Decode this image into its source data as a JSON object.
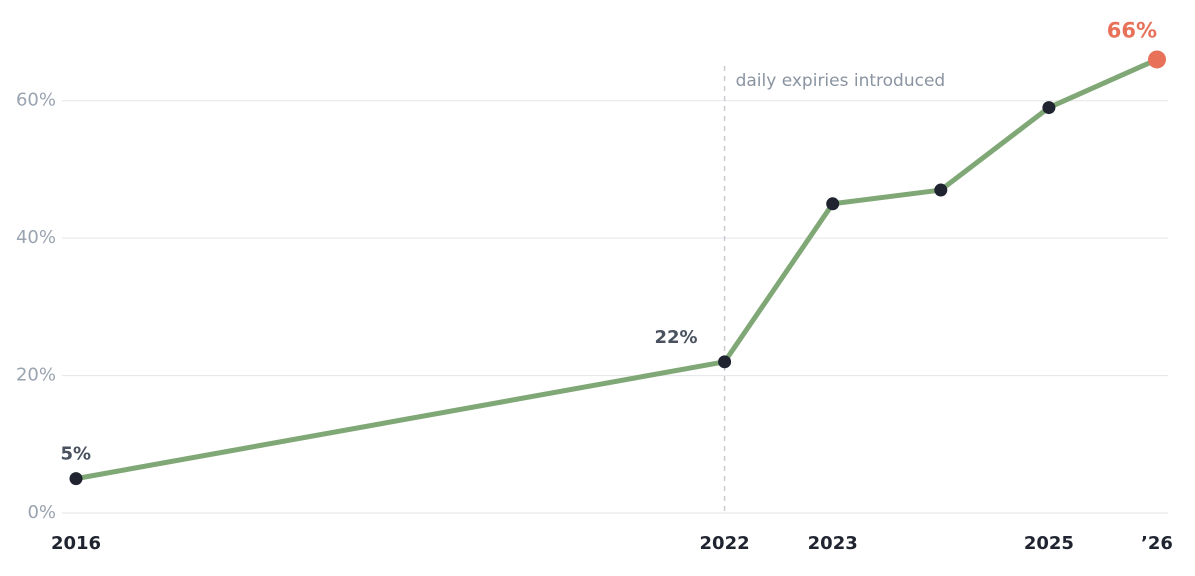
{
  "chart_data": {
    "type": "line",
    "x": [
      2016,
      2022,
      2023,
      2024,
      2025,
      2026
    ],
    "series": [
      {
        "color": "#80a876",
        "values": [
          5,
          22,
          45,
          47,
          59,
          66
        ],
        "value_labels": [
          "5%",
          "22%",
          null,
          null,
          null,
          "66%"
        ]
      }
    ],
    "marker_color": "#1f2430",
    "highlight_color": "#e8715a",
    "xlim": [
      2016,
      2026
    ],
    "xticks": [
      2016,
      2022,
      2023,
      2025,
      {
        "value": 2026,
        "label": "’26"
      }
    ],
    "ylim": [
      0,
      70
    ],
    "yticks": [
      {
        "value": 0,
        "label": "0%"
      },
      {
        "value": 20,
        "label": "20%"
      },
      {
        "value": 40,
        "label": "40%"
      },
      {
        "value": 60,
        "label": "60%"
      }
    ],
    "grid": true,
    "annotation": {
      "text": "daily expiries introduced",
      "x": 2022
    }
  }
}
